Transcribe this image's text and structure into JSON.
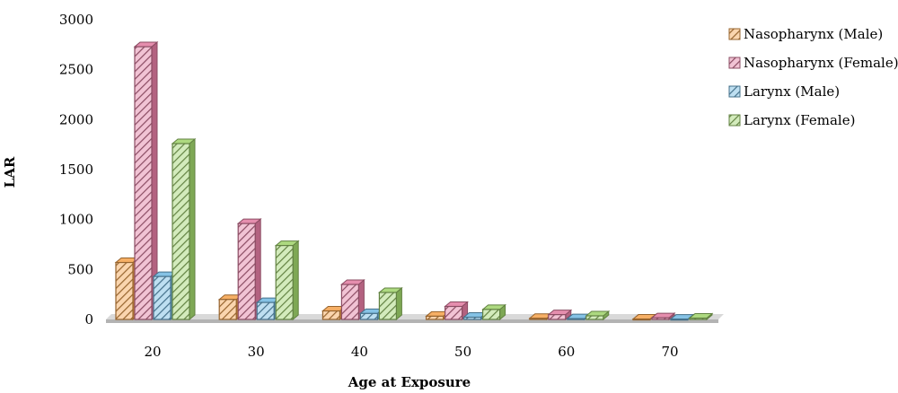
{
  "chart_data": {
    "type": "bar",
    "title": "",
    "xlabel": "Age at Exposure",
    "ylabel": "LAR",
    "ylim": [
      0,
      3000
    ],
    "yticks": [
      0,
      500,
      1000,
      1500,
      2000,
      2500,
      3000
    ],
    "grid": false,
    "legend_position": "right",
    "categories": [
      "20",
      "30",
      "40",
      "50",
      "60",
      "70"
    ],
    "series": [
      {
        "name": "Nasopharynx (Male)",
        "color": "#f4a14a",
        "values": [
          570,
          200,
          85,
          32,
          11,
          4
        ]
      },
      {
        "name": "Nasopharynx (Female)",
        "color": "#e07aa0",
        "values": [
          2730,
          960,
          350,
          130,
          48,
          17
        ]
      },
      {
        "name": "Larynx (Male)",
        "color": "#6fb7e0",
        "values": [
          430,
          170,
          60,
          22,
          8,
          3
        ]
      },
      {
        "name": "Larynx (Female)",
        "color": "#9ed26a",
        "values": [
          1760,
          740,
          270,
          100,
          36,
          13
        ]
      }
    ]
  }
}
